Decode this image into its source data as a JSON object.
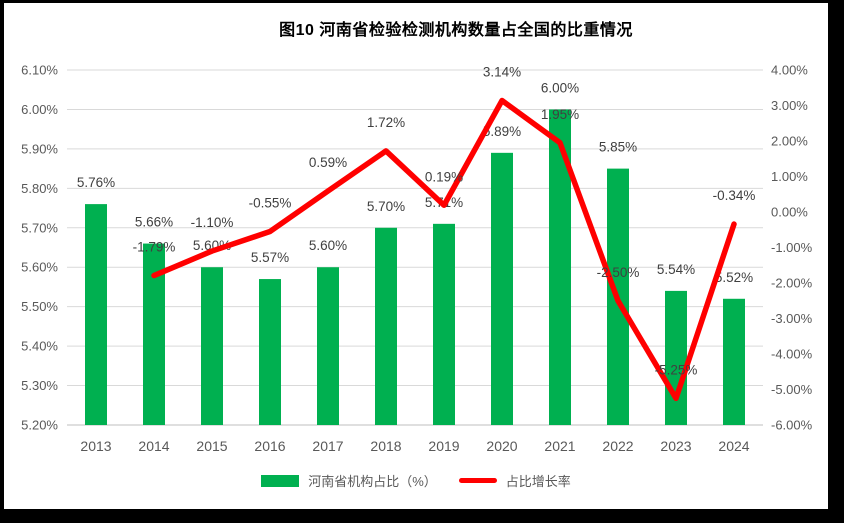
{
  "title": "图10  河南省检验检测机构数量占全国的比重情况",
  "legend": {
    "items": [
      {
        "label": "河南省机构占比（%）",
        "color": "#00B050",
        "type": "bar"
      },
      {
        "label": "占比增长率",
        "color": "#FF0000",
        "type": "line"
      }
    ]
  },
  "chart_data": {
    "type": "bar",
    "combo": "bar+line dual-axis",
    "title": "图10  河南省检验检测机构数量占全国的比重情况",
    "categories": [
      "2013",
      "2014",
      "2015",
      "2016",
      "2017",
      "2018",
      "2019",
      "2020",
      "2021",
      "2022",
      "2023",
      "2024"
    ],
    "series": [
      {
        "name": "河南省机构占比（%）",
        "type": "bar",
        "axis": "left",
        "color": "#00B050",
        "values": [
          5.76,
          5.66,
          5.6,
          5.57,
          5.6,
          5.7,
          5.71,
          5.89,
          6.0,
          5.85,
          5.54,
          5.52
        ],
        "labels": [
          "5.76%",
          "5.66%",
          "5.60%",
          "5.57%",
          "5.60%",
          "5.70%",
          "5.71%",
          "5.89%",
          "6.00%",
          "5.85%",
          "5.54%",
          "5.52%"
        ]
      },
      {
        "name": "占比增长率",
        "type": "line",
        "axis": "right",
        "color": "#FF0000",
        "values": [
          null,
          -1.79,
          -1.1,
          -0.55,
          0.59,
          1.72,
          0.19,
          3.14,
          1.95,
          -2.5,
          -5.25,
          -0.34
        ],
        "labels": [
          null,
          "-1.79%",
          "-1.10%",
          "-0.55%",
          "0.59%",
          "1.72%",
          "0.19%",
          "3.14%",
          "1.95%",
          "-2.50%",
          "-5.25%",
          "-0.34%"
        ]
      }
    ],
    "left_axis": {
      "min": 5.2,
      "max": 6.1,
      "step": 0.1,
      "ticks": [
        "6.10%",
        "6.00%",
        "5.90%",
        "5.80%",
        "5.70%",
        "5.60%",
        "5.50%",
        "5.40%",
        "5.30%",
        "5.20%"
      ]
    },
    "right_axis": {
      "min": -6.0,
      "max": 4.0,
      "step": 1.0,
      "ticks": [
        "4.00%",
        "3.00%",
        "2.00%",
        "1.00%",
        "0.00%",
        "-1.00%",
        "-2.00%",
        "-3.00%",
        "-4.00%",
        "-5.00%",
        "-6.00%"
      ]
    },
    "grid": true,
    "legend_position": "bottom",
    "colors": {
      "grid": "#D9D9D9",
      "axis_line": "#BFBFBF",
      "tick_text": "#595959",
      "label_text": "#404040",
      "frame": "#000000",
      "background": "#FFFFFF"
    }
  }
}
